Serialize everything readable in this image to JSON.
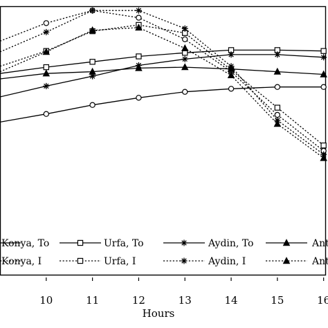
{
  "chart_data": {
    "type": "line",
    "title": "",
    "xlabel": "Hours",
    "ylabel": "",
    "x": [
      9,
      10,
      11,
      12,
      13,
      14,
      15,
      16
    ],
    "xtick_labels": [
      "10",
      "11",
      "12",
      "13",
      "14",
      "15",
      "16"
    ],
    "xlim": [
      9.0,
      16.05
    ],
    "ylim": [
      0,
      100
    ],
    "grid": false,
    "legend_placement": "bottom",
    "series": [
      {
        "name": "Konya, To",
        "marker": "circle",
        "dash": "solid",
        "values": [
          36,
          40.5,
          45.5,
          49.5,
          52.8,
          54.5,
          55.5,
          55.5
        ]
      },
      {
        "name": "Konya, I",
        "marker": "circle",
        "dash": "dotted",
        "values": [
          81,
          91,
          98,
          94,
          82,
          64,
          40,
          20
        ]
      },
      {
        "name": "Urfa, To",
        "marker": "square",
        "dash": "solid",
        "values": [
          63,
          66.5,
          69.5,
          72.5,
          74.5,
          76,
          76,
          75.5
        ]
      },
      {
        "name": "Urfa, I",
        "marker": "square",
        "dash": "dotted",
        "values": [
          67,
          75.5,
          86.5,
          90,
          85.5,
          65,
          44,
          23
        ]
      },
      {
        "name": "Aydin, To",
        "marker": "star",
        "dash": "solid",
        "values": [
          50,
          56,
          61.5,
          67.5,
          71,
          73.5,
          73.5,
          72
        ]
      },
      {
        "name": "Aydin, I",
        "marker": "star",
        "dash": "dotted",
        "values": [
          75,
          86,
          98,
          98,
          88,
          67,
          37,
          18
        ]
      },
      {
        "name": "Antalya, To",
        "marker": "triangle",
        "dash": "solid",
        "values": [
          60,
          63,
          64,
          66,
          66.5,
          65.5,
          64,
          62.5
        ]
      },
      {
        "name": "Antalya, I",
        "marker": "triangle",
        "dash": "dotted",
        "values": [
          64,
          75,
          87,
          88.5,
          77,
          62,
          35,
          16
        ]
      }
    ],
    "legend_rows": [
      [
        "Konya, To",
        "Urfa, To",
        "Aydin, To",
        "Antalya, To"
      ],
      [
        "Konya, I",
        "Urfa, I",
        "Aydin, I",
        "Antalya, I"
      ]
    ],
    "legend_visible_text": [
      [
        "Konya, To",
        "Urfa, To",
        "Aydin, To",
        "Ant"
      ],
      [
        "Konya, I",
        "Urfa, I",
        "Aydin, I",
        "Ant"
      ]
    ]
  }
}
